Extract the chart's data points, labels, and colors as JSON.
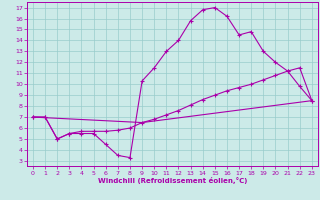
{
  "xlabel": "Windchill (Refroidissement éolien,°C)",
  "xlim": [
    -0.5,
    23.5
  ],
  "ylim": [
    2.5,
    17.5
  ],
  "xticks": [
    0,
    1,
    2,
    3,
    4,
    5,
    6,
    7,
    8,
    9,
    10,
    11,
    12,
    13,
    14,
    15,
    16,
    17,
    18,
    19,
    20,
    21,
    22,
    23
  ],
  "yticks": [
    3,
    4,
    5,
    6,
    7,
    8,
    9,
    10,
    11,
    12,
    13,
    14,
    15,
    16,
    17
  ],
  "bg_color": "#cceae8",
  "line_color": "#aa00aa",
  "grid_color": "#99cccc",
  "line1_x": [
    0,
    1,
    2,
    3,
    4,
    5,
    6,
    7,
    8,
    9,
    10,
    11,
    12,
    13,
    14,
    15,
    16,
    17,
    18,
    19,
    20,
    21,
    22,
    23
  ],
  "line1_y": [
    7.0,
    7.0,
    5.0,
    5.5,
    5.5,
    5.5,
    4.5,
    3.5,
    3.3,
    10.3,
    11.5,
    13.0,
    14.0,
    15.8,
    16.8,
    17.0,
    16.2,
    14.5,
    14.8,
    13.0,
    12.0,
    11.2,
    9.8,
    8.5
  ],
  "line2_x": [
    0,
    1,
    2,
    3,
    4,
    5,
    6,
    7,
    8,
    9,
    10,
    11,
    12,
    13,
    14,
    15,
    16,
    17,
    18,
    19,
    20,
    21,
    22,
    23
  ],
  "line2_y": [
    7.0,
    7.0,
    5.0,
    5.5,
    5.7,
    5.7,
    5.7,
    5.8,
    6.0,
    6.5,
    6.8,
    7.2,
    7.6,
    8.1,
    8.6,
    9.0,
    9.4,
    9.7,
    10.0,
    10.4,
    10.8,
    11.2,
    11.5,
    8.5
  ],
  "line3_x": [
    0,
    9,
    23
  ],
  "line3_y": [
    7.0,
    6.5,
    8.5
  ],
  "marker_size": 3,
  "lw": 0.8
}
